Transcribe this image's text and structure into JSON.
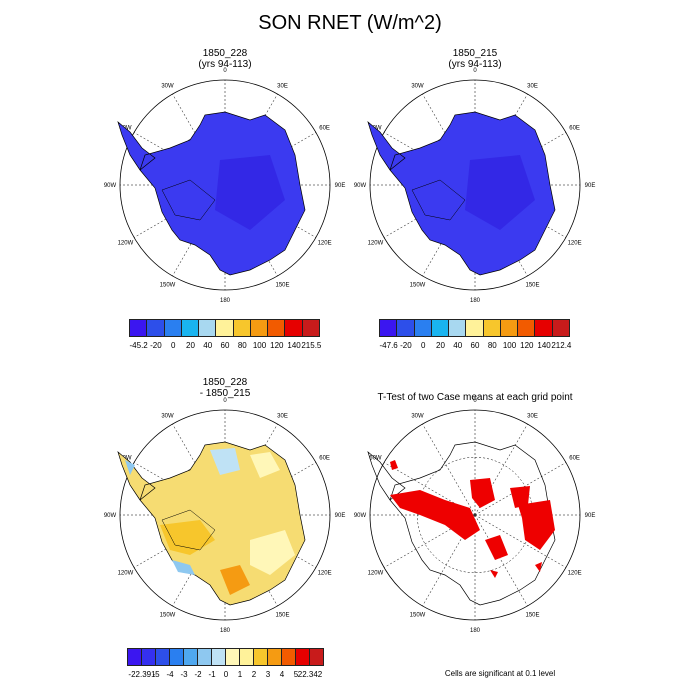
{
  "title": "SON RNET (W/m^2)",
  "panels": [
    {
      "title": "1850_228",
      "subtitle": "(yrs 94-113)"
    },
    {
      "title": "1850_215",
      "subtitle": "(yrs 94-113)"
    },
    {
      "title": "1850_228",
      "subtitle": "- 1850_215"
    },
    {
      "title": "T-Test of two Case means at each grid point",
      "subtitle": ""
    }
  ],
  "lon_labels": [
    "0",
    "30E",
    "60E",
    "90E",
    "120E",
    "150E",
    "180",
    "150W",
    "120W",
    "90W",
    "60W",
    "30W"
  ],
  "colorbars": {
    "cb1": {
      "labels": [
        "-45.2",
        "-20",
        "0",
        "20",
        "40",
        "60",
        "80",
        "100",
        "120",
        "140",
        "215.5"
      ],
      "colors": [
        "#3b16f0",
        "#2d4fea",
        "#2a7ff0",
        "#19b4f0",
        "#a8d8f0",
        "#fff29a",
        "#f7c62c",
        "#f59b12",
        "#f25b00",
        "#e60000",
        "#c81b1b"
      ]
    },
    "cb2": {
      "labels": [
        "-47.6",
        "-20",
        "0",
        "20",
        "40",
        "60",
        "80",
        "100",
        "120",
        "140",
        "212.4"
      ],
      "colors": [
        "#3b16f0",
        "#2d4fea",
        "#2a7ff0",
        "#19b4f0",
        "#a8d8f0",
        "#fff29a",
        "#f7c62c",
        "#f59b12",
        "#f25b00",
        "#e60000",
        "#c81b1b"
      ]
    },
    "cb3": {
      "labels": [
        "-22.391",
        "-5",
        "-4",
        "-3",
        "-2",
        "-1",
        "0",
        "1",
        "2",
        "3",
        "4",
        "5",
        "22.342"
      ],
      "colors": [
        "#3b16f0",
        "#3530f0",
        "#2d4fea",
        "#2a7ff0",
        "#4fa8f0",
        "#8ec8f0",
        "#bfe2f5",
        "#fff7b8",
        "#fff29a",
        "#f7c62c",
        "#f59b12",
        "#f25b00",
        "#e60000",
        "#c81b1b"
      ]
    }
  },
  "note": "Cells are significant at 0.1 level",
  "colors": {
    "absolute_fill": "#3b3af0",
    "diff_fill": "#f6dc72",
    "ttest_fill": "#ee0000"
  }
}
